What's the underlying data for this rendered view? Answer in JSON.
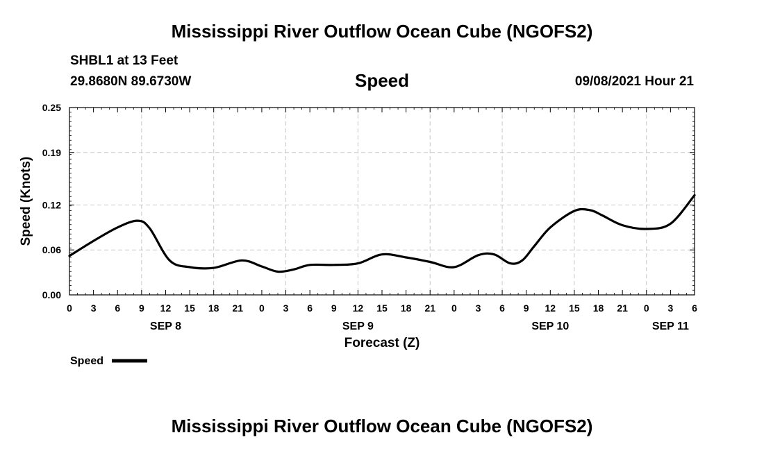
{
  "header": {
    "main_title": "Mississippi River Outflow Ocean Cube (NGOFS2)",
    "station": "SHBL1 at 13 Feet",
    "coordinates": "29.8680N  89.6730W",
    "chart_name": "Speed",
    "datetime": "09/08/2021 Hour 21"
  },
  "footer": {
    "title": "Mississippi River Outflow Ocean Cube (NGOFS2)"
  },
  "colors": {
    "line": "#000000",
    "grid": "#c8c8c8",
    "background": "#ffffff"
  },
  "chart_data": {
    "type": "line",
    "title": "Speed",
    "xlabel": "Forecast (Z)",
    "ylabel": "Speed (Knots)",
    "ylim": [
      0,
      0.25
    ],
    "xlim": [
      0,
      78
    ],
    "x_unit": "hours since SEP 8 00Z",
    "y_ticks": [
      0.0,
      0.06,
      0.12,
      0.19,
      0.25
    ],
    "y_tick_labels": [
      "0.00",
      "0.06",
      "0.12",
      "0.19",
      "0.25"
    ],
    "x_tick_labels": [
      "0",
      "3",
      "6",
      "9",
      "12",
      "15",
      "18",
      "21",
      "0",
      "3",
      "6",
      "9",
      "12",
      "15",
      "18",
      "21",
      "0",
      "3",
      "6",
      "9",
      "12",
      "15",
      "18",
      "21",
      "0",
      "3",
      "6"
    ],
    "date_labels": [
      {
        "label": "SEP 8",
        "hour": 12
      },
      {
        "label": "SEP 9",
        "hour": 36
      },
      {
        "label": "SEP 10",
        "hour": 60
      },
      {
        "label": "SEP 11",
        "hour": 75
      }
    ],
    "grid": true,
    "legend": {
      "position": "bottom-left",
      "entries": [
        "Speed"
      ]
    },
    "series": [
      {
        "name": "Speed",
        "x": [
          0,
          3,
          6,
          8.5,
          10,
          12.5,
          15,
          18,
          21.5,
          24,
          26,
          28,
          30,
          33,
          36,
          39,
          42,
          45,
          48,
          51,
          53,
          55,
          56.5,
          58,
          60,
          63,
          65,
          66.5,
          69,
          72,
          75,
          78
        ],
        "values": [
          0.052,
          0.072,
          0.09,
          0.099,
          0.089,
          0.046,
          0.037,
          0.036,
          0.046,
          0.038,
          0.031,
          0.034,
          0.04,
          0.04,
          0.042,
          0.054,
          0.05,
          0.044,
          0.037,
          0.053,
          0.054,
          0.042,
          0.046,
          0.065,
          0.09,
          0.112,
          0.113,
          0.106,
          0.093,
          0.088,
          0.095,
          0.133
        ]
      }
    ]
  }
}
